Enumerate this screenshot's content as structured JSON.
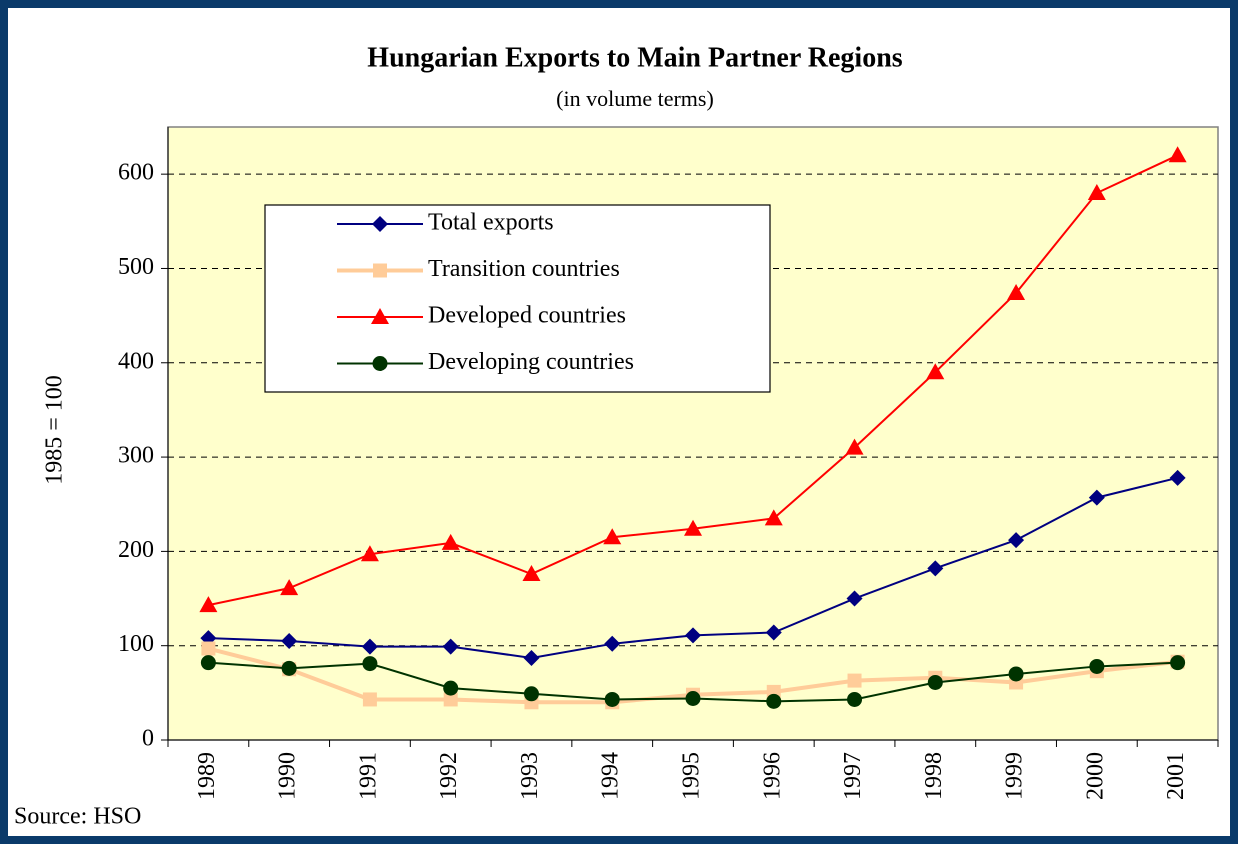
{
  "chart_data": {
    "type": "line",
    "title": "Hungarian Exports to Main Partner Regions",
    "subtitle": "(in volume terms)",
    "y_label": "1985 = 100",
    "source": "Source: HSO",
    "categories": [
      "1989",
      "1990",
      "1991",
      "1992",
      "1993",
      "1994",
      "1995",
      "1996",
      "1997",
      "1998",
      "1999",
      "2000",
      "2001"
    ],
    "series": [
      {
        "name": "Total exports",
        "color": "#000080",
        "marker": "diamond",
        "values": [
          108,
          105,
          99,
          99,
          87,
          102,
          111,
          114,
          150,
          182,
          212,
          257,
          278
        ]
      },
      {
        "name": "Transition countries",
        "color": "#ffcc99",
        "marker": "square",
        "values": [
          97,
          75,
          43,
          43,
          40,
          40,
          48,
          51,
          63,
          66,
          61,
          73,
          83
        ]
      },
      {
        "name": "Developed countries",
        "color": "#ff0000",
        "marker": "triangle",
        "values": [
          143,
          161,
          197,
          209,
          176,
          215,
          224,
          235,
          310,
          390,
          474,
          580,
          620
        ]
      },
      {
        "name": "Developing countries",
        "color": "#003300",
        "marker": "circle",
        "values": [
          82,
          76,
          81,
          55,
          49,
          43,
          44,
          41,
          43,
          61,
          70,
          78,
          82
        ]
      }
    ],
    "ylim": [
      0,
      650
    ],
    "yticks": [
      0,
      100,
      200,
      300,
      400,
      500,
      600
    ],
    "grid": true,
    "legend": "upper left"
  }
}
